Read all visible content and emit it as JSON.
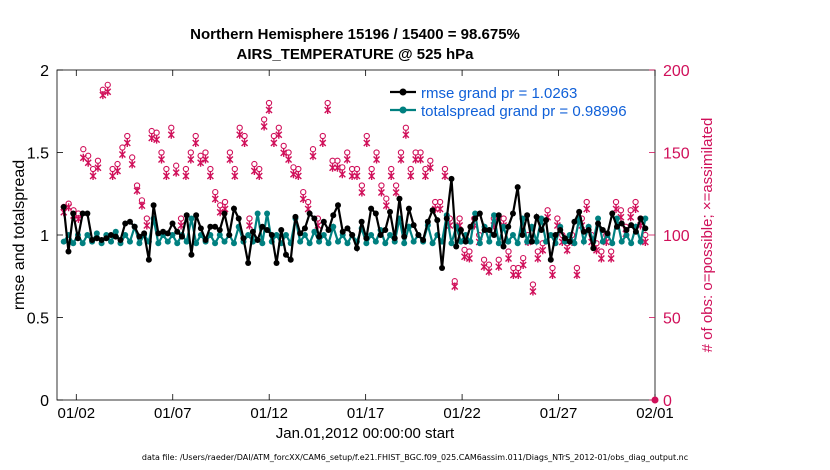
{
  "chart_data": {
    "type": "line",
    "title": "Northern Hemisphere 15196 / 15400 = 98.675%",
    "subtitle": "AIRS_TEMPERATURE @ 525 hPa",
    "xlabel": "Jan.01,2012 00:00:00 start",
    "ylabel_left": "rmse and totalspread",
    "ylabel_right": "# of obs: o=possible; ×=assimilated",
    "xlim": [
      0,
      31
    ],
    "ylim_left": [
      0,
      2
    ],
    "ylim_right": [
      0,
      200
    ],
    "x_ticks": [
      {
        "x": 1,
        "label": "01/02"
      },
      {
        "x": 6,
        "label": "01/07"
      },
      {
        "x": 11,
        "label": "01/12"
      },
      {
        "x": 16,
        "label": "01/17"
      },
      {
        "x": 21,
        "label": "01/22"
      },
      {
        "x": 26,
        "label": "01/27"
      },
      {
        "x": 31,
        "label": "02/01"
      }
    ],
    "y_ticks_left": [
      0,
      0.5,
      1,
      1.5,
      2
    ],
    "y_ticks_right": [
      0,
      50,
      100,
      150,
      200
    ],
    "legend_position": "top-right",
    "series": [
      {
        "name": "rmse",
        "legend": "rmse grand pr = 1.0263",
        "color": "#000000",
        "values": [
          1.17,
          0.9,
          1.13,
          0.98,
          1.13,
          1.13,
          0.97,
          0.98,
          0.97,
          0.98,
          1.0,
          0.99,
          0.97,
          1.07,
          1.08,
          1.05,
          0.99,
          1.01,
          0.85,
          1.18,
          1.01,
          1.02,
          1.01,
          1.07,
          1.02,
          0.99,
          1.12,
          0.88,
          1.12,
          1.04,
          0.97,
          1.05,
          1.05,
          1.03,
          1.13,
          1.0,
          1.16,
          1.1,
          0.98,
          0.83,
          1.02,
          0.97,
          1.05,
          1.03,
          1.0,
          0.83,
          1.03,
          0.88,
          0.85,
          1.11,
          1.01,
          1.04,
          1.13,
          1.1,
          0.99,
          1.08,
          1.03,
          1.12,
          1.18,
          1.02,
          1.04,
          1.0,
          0.92,
          1.08,
          0.98,
          1.16,
          1.13,
          1.0,
          1.03,
          1.14,
          0.98,
          1.22,
          0.99,
          1.16,
          1.06,
          1.0,
          0.97,
          1.08,
          1.15,
          1.09,
          0.8,
          1.1,
          1.34,
          0.93,
          1.03,
          0.96,
          1.05,
          1.1,
          1.13,
          1.03,
          1.03,
          1.0,
          1.12,
          0.93,
          1.05,
          1.13,
          1.29,
          1.0,
          1.12,
          0.96,
          1.11,
          1.03,
          1.09,
          0.85,
          1.0,
          1.03,
          0.98,
          0.96,
          1.08,
          1.14,
          1.02,
          1.03,
          0.92,
          1.07,
          1.03,
          1.01,
          1.13,
          1.05,
          1.07,
          1.03,
          1.06,
          1.02,
          1.1,
          1.04
        ]
      },
      {
        "name": "totalspread",
        "legend": "totalspread grand pr = 0.98996",
        "color": "#008080",
        "values": [
          0.96,
          1.0,
          0.95,
          1.0,
          0.95,
          1.0,
          0.96,
          1.01,
          0.95,
          1.0,
          0.96,
          1.02,
          0.95,
          1.0,
          0.96,
          1.05,
          0.95,
          1.0,
          0.96,
          1.1,
          0.95,
          1.0,
          0.96,
          1.0,
          0.95,
          1.0,
          0.96,
          1.1,
          0.95,
          1.0,
          0.96,
          1.0,
          0.95,
          1.0,
          0.96,
          1.0,
          0.95,
          1.05,
          0.96,
          1.0,
          0.96,
          1.13,
          0.95,
          1.13,
          0.96,
          1.0,
          0.95,
          1.0,
          0.95,
          1.1,
          0.96,
          1.0,
          0.95,
          1.02,
          0.96,
          1.0,
          0.95,
          1.05,
          0.96,
          1.0,
          0.95,
          1.0,
          0.96,
          1.04,
          0.95,
          1.0,
          0.96,
          1.03,
          0.95,
          1.0,
          0.96,
          1.1,
          0.95,
          1.05,
          0.96,
          1.0,
          0.96,
          1.06,
          0.95,
          1.0,
          0.96,
          1.12,
          0.95,
          1.05,
          0.96,
          1.0,
          0.96,
          1.13,
          0.95,
          1.05,
          0.96,
          1.12,
          0.95,
          1.05,
          0.96,
          1.0,
          0.95,
          1.1,
          0.96,
          1.05,
          0.96,
          1.1,
          0.96,
          1.0,
          0.95,
          1.05,
          0.96,
          1.0,
          0.95,
          1.1,
          0.96,
          1.05,
          0.96,
          1.1,
          0.96,
          1.0,
          0.95,
          1.1,
          0.96,
          1.0,
          0.95,
          1.05,
          0.96,
          1.1
        ]
      },
      {
        "name": "obs_possible",
        "marker": "o",
        "color": "#d0105a",
        "values": [
          117,
          119,
          115,
          113,
          152,
          148,
          140,
          145,
          188,
          191,
          140,
          143,
          153,
          160,
          147,
          130,
          121,
          110,
          163,
          162,
          150,
          140,
          165,
          142,
          110,
          140,
          150,
          160,
          148,
          150,
          140,
          126,
          118,
          120,
          150,
          140,
          165,
          160,
          110,
          143,
          140,
          170,
          180,
          160,
          165,
          154,
          150,
          141,
          140,
          126,
          120,
          152,
          110,
          160,
          180,
          145,
          145,
          141,
          150,
          140,
          140,
          130,
          160,
          140,
          150,
          130,
          122,
          140,
          130,
          150,
          165,
          140,
          150,
          150,
          140,
          145,
          120,
          120,
          140,
          110,
          72,
          110,
          91,
          90,
          110,
          100,
          85,
          82,
          110,
          85,
          110,
          90,
          80,
          80,
          86,
          100,
          70,
          90,
          95,
          115,
          80,
          110,
          100,
          95,
          100,
          80,
          110,
          120,
          100,
          95,
          90,
          100,
          90,
          120,
          115,
          105,
          115,
          120,
          110,
          100
        ]
      },
      {
        "name": "obs_assimilated",
        "marker": "x",
        "color": "#d0105a",
        "values": [
          115,
          118,
          113,
          111,
          148,
          145,
          137,
          142,
          186,
          188,
          137,
          140,
          150,
          157,
          144,
          128,
          119,
          107,
          160,
          159,
          147,
          137,
          162,
          139,
          107,
          137,
          147,
          157,
          145,
          147,
          137,
          123,
          115,
          117,
          147,
          137,
          162,
          157,
          107,
          140,
          137,
          167,
          177,
          157,
          162,
          151,
          147,
          138,
          137,
          123,
          117,
          149,
          107,
          157,
          177,
          142,
          142,
          138,
          147,
          137,
          137,
          127,
          157,
          137,
          147,
          127,
          119,
          137,
          127,
          147,
          162,
          137,
          147,
          147,
          137,
          142,
          117,
          117,
          137,
          107,
          70,
          107,
          88,
          87,
          107,
          97,
          82,
          79,
          107,
          82,
          107,
          87,
          77,
          77,
          83,
          97,
          67,
          87,
          92,
          112,
          77,
          107,
          97,
          92,
          97,
          77,
          107,
          117,
          97,
          92,
          87,
          97,
          87,
          117,
          112,
          102,
          112,
          117,
          107,
          97
        ]
      }
    ],
    "footer": "data file: /Users/raeder/DAI/ATM_forcXX/CAM6_setup/f.e21.FHIST_BGC.f09_025.CAM6assim.011/Diags_NTrS_2012-01/obs_diag_output.nc"
  }
}
